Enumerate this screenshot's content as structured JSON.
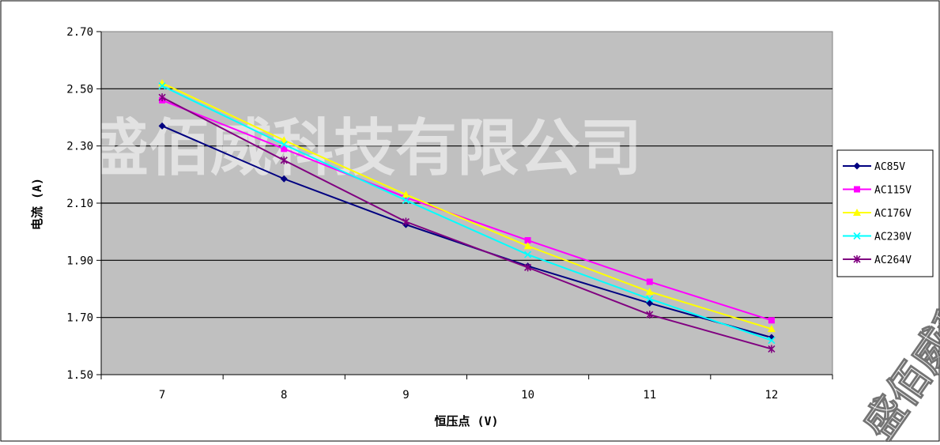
{
  "watermark": {
    "text": "盛佰威科技有限公司",
    "corner_text": "盛佰威科技有限公司"
  },
  "colors": {
    "plot_bg": "#c0c0c0",
    "gridline": "#000000",
    "watermark": "#ffffff"
  },
  "chart_data": {
    "type": "line",
    "title": "",
    "xlabel": "恒压点 (V)",
    "ylabel": "电流 (A)",
    "x": [
      7,
      8,
      9,
      10,
      11,
      12
    ],
    "xticks": [
      "7",
      "8",
      "9",
      "10",
      "11",
      "12"
    ],
    "yticks": [
      "1.50",
      "1.70",
      "1.90",
      "2.10",
      "2.30",
      "2.50",
      "2.70"
    ],
    "ylim": [
      1.5,
      2.7
    ],
    "grid": true,
    "legend_position": "right",
    "series": [
      {
        "name": "AC85V",
        "color": "#000080",
        "marker": "diamond",
        "values": [
          2.37,
          2.185,
          2.025,
          1.88,
          1.75,
          1.63
        ]
      },
      {
        "name": "AC115V",
        "color": "#ff00ff",
        "marker": "square",
        "values": [
          2.46,
          2.29,
          2.12,
          1.97,
          1.825,
          1.69
        ]
      },
      {
        "name": "AC176V",
        "color": "#ffff00",
        "marker": "triangle",
        "values": [
          2.52,
          2.32,
          2.13,
          1.95,
          1.79,
          1.66
        ]
      },
      {
        "name": "AC230V",
        "color": "#00ffff",
        "marker": "x",
        "values": [
          2.51,
          2.305,
          2.11,
          1.92,
          1.765,
          1.62
        ]
      },
      {
        "name": "AC264V",
        "color": "#800080",
        "marker": "star",
        "values": [
          2.47,
          2.25,
          2.035,
          1.875,
          1.71,
          1.59
        ]
      }
    ]
  }
}
